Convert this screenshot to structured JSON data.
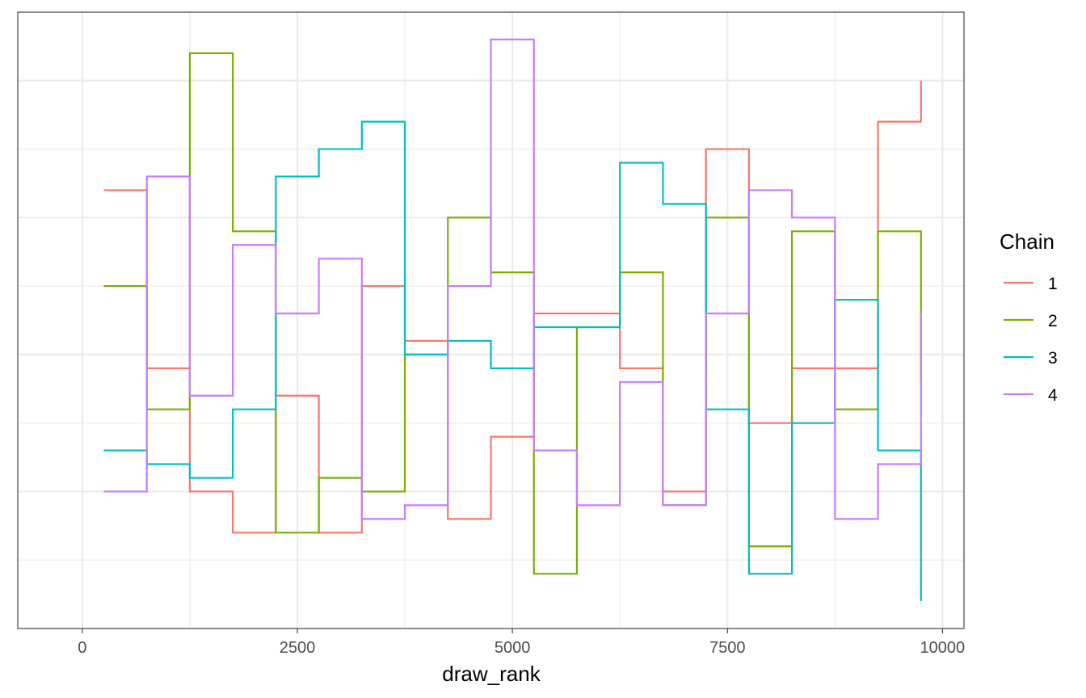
{
  "chart_data": {
    "type": "line",
    "step": true,
    "xlabel": "draw_rank",
    "ylabel": "",
    "xlim": [
      -750,
      10250
    ],
    "ylim": [
      0,
      45
    ],
    "x_ticks": [
      0,
      2500,
      5000,
      7500,
      10000
    ],
    "x_tick_labels": [
      "0",
      "2500",
      "5000",
      "7500",
      "10000"
    ],
    "y_ticks_shown_as_gridlines": [
      5,
      10,
      15,
      20,
      25,
      30,
      35,
      40
    ],
    "y_tick_labels_visible": false,
    "bin_edges": [
      250,
      750,
      1250,
      1750,
      2250,
      2750,
      3250,
      3750,
      4250,
      4750,
      5250,
      5750,
      6250,
      6750,
      7250,
      7750,
      8250,
      8750,
      9250,
      9750
    ],
    "grid": true,
    "panel_border": true,
    "legend": {
      "title": "Chain",
      "position": "right"
    },
    "series": [
      {
        "name": "1",
        "color": "#F8766D",
        "values": [
          32,
          19,
          10,
          7,
          17,
          7,
          25,
          21,
          8,
          14,
          23,
          23,
          19,
          10,
          35,
          15,
          19,
          19,
          37,
          40
        ]
      },
      {
        "name": "2",
        "color": "#7CAE00",
        "values": [
          25,
          16,
          42,
          29,
          7,
          11,
          10,
          20,
          30,
          26,
          4,
          22,
          26,
          9,
          30,
          6,
          29,
          16,
          29,
          18
        ]
      },
      {
        "name": "3",
        "color": "#00BFC4",
        "values": [
          13,
          12,
          11,
          16,
          33,
          35,
          37,
          20,
          21,
          19,
          22,
          22,
          34,
          31,
          16,
          4,
          15,
          24,
          13,
          2
        ]
      },
      {
        "name": "4",
        "color": "#C77CFF",
        "values": [
          10,
          33,
          17,
          28,
          23,
          27,
          8,
          9,
          25,
          43,
          13,
          9,
          18,
          9,
          23,
          32,
          30,
          8,
          12,
          23
        ]
      }
    ]
  }
}
